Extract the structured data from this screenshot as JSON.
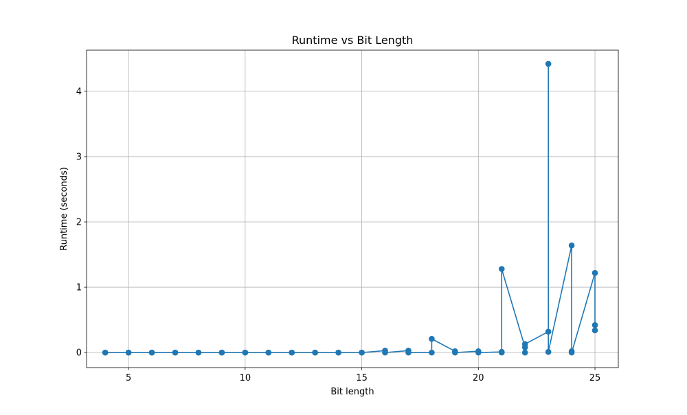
{
  "chart_data": {
    "type": "line",
    "title": "Runtime vs Bit Length",
    "xlabel": "Bit length",
    "ylabel": "Runtime (seconds)",
    "xlim": [
      3.2,
      26
    ],
    "ylim": [
      -0.23,
      4.63
    ],
    "xticks": [
      5,
      10,
      15,
      20,
      25
    ],
    "yticks": [
      0,
      1,
      2,
      3,
      4
    ],
    "grid": true,
    "legend": "none",
    "series": [
      {
        "color": "#1f77b4",
        "marker": "circle",
        "points": [
          [
            4,
            0.0
          ],
          [
            4,
            0.0
          ],
          [
            5,
            0.0
          ],
          [
            5,
            0.0
          ],
          [
            6,
            0.0
          ],
          [
            6,
            0.0
          ],
          [
            7,
            0.0
          ],
          [
            7,
            0.0
          ],
          [
            8,
            0.0
          ],
          [
            8,
            0.0
          ],
          [
            9,
            0.0
          ],
          [
            9,
            0.0
          ],
          [
            10,
            0.0
          ],
          [
            10,
            0.0
          ],
          [
            11,
            0.0
          ],
          [
            11,
            0.0
          ],
          [
            12,
            0.0
          ],
          [
            12,
            0.0
          ],
          [
            13,
            0.0
          ],
          [
            13,
            0.0
          ],
          [
            14,
            0.0
          ],
          [
            14,
            0.0
          ],
          [
            15,
            0.0
          ],
          [
            15,
            0.0
          ],
          [
            16,
            0.03
          ],
          [
            16,
            0.0
          ],
          [
            17,
            0.03
          ],
          [
            17,
            0.0
          ],
          [
            18,
            0.0
          ],
          [
            18,
            0.21
          ],
          [
            19,
            0.02
          ],
          [
            19,
            0.0
          ],
          [
            20,
            0.02
          ],
          [
            20,
            0.0
          ],
          [
            21,
            0.01
          ],
          [
            21,
            0.0
          ],
          [
            21,
            1.28
          ],
          [
            22,
            0.08
          ],
          [
            22,
            0.0
          ],
          [
            22,
            0.13
          ],
          [
            23,
            0.32
          ],
          [
            23,
            4.42
          ],
          [
            23,
            0.01
          ],
          [
            24,
            1.64
          ],
          [
            24,
            0.02
          ],
          [
            24,
            0.0
          ],
          [
            25,
            1.22
          ],
          [
            25,
            0.42
          ],
          [
            25,
            0.34
          ]
        ]
      }
    ]
  }
}
